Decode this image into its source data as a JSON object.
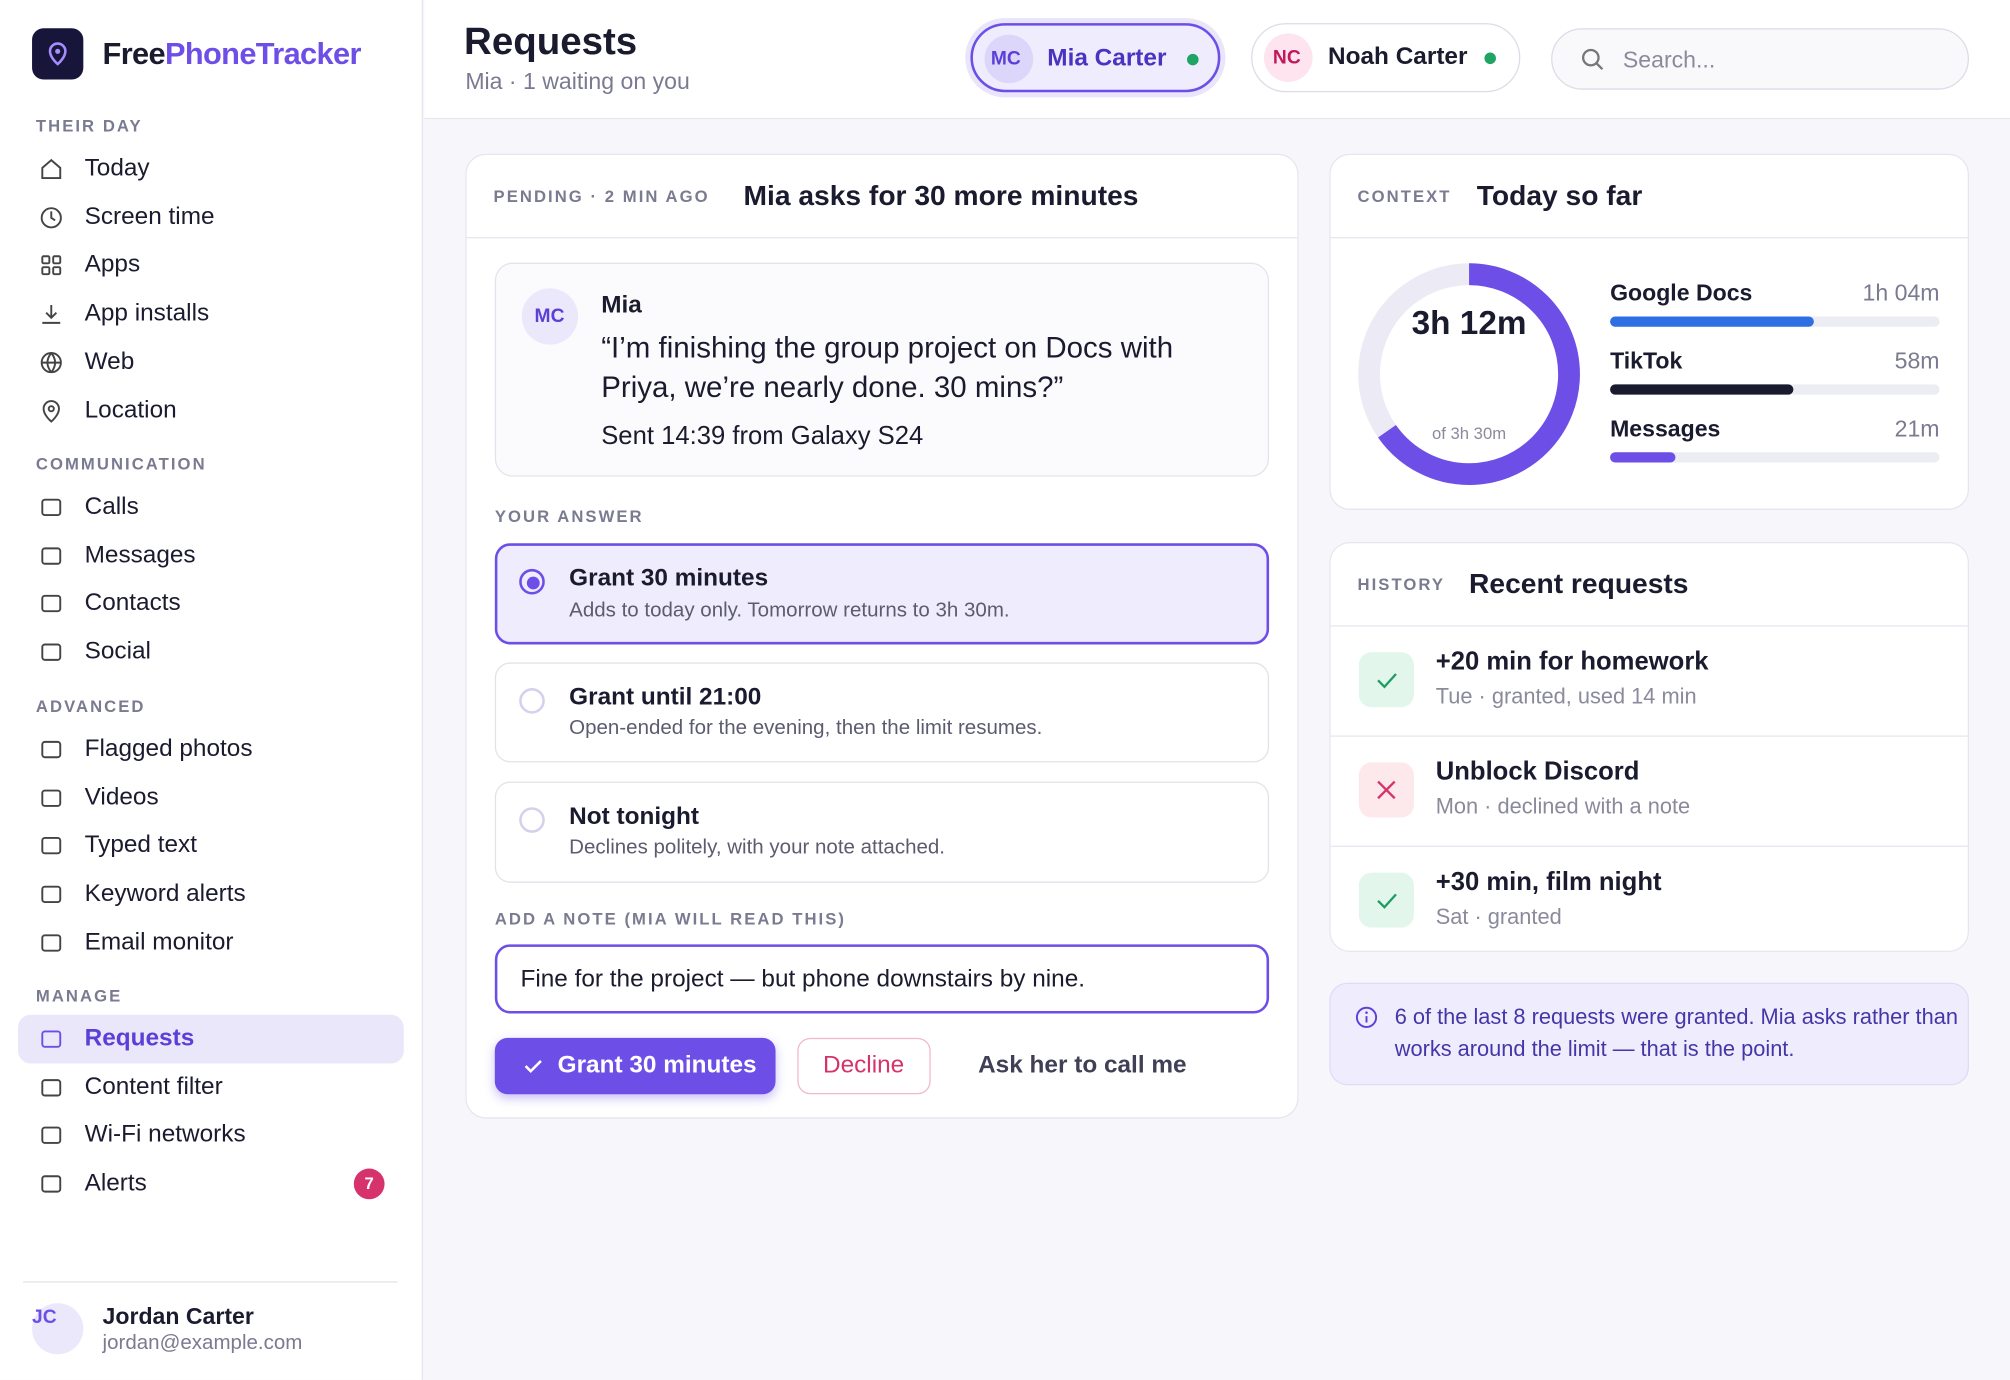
{
  "brand": {
    "part1": "Free",
    "part2": "PhoneTracker"
  },
  "header": {
    "title": "Requests",
    "subtitle": "Mia · 1 waiting on you",
    "profiles": [
      {
        "initials": "MC",
        "name": "Mia Carter"
      },
      {
        "initials": "NC",
        "name": "Noah Carter"
      }
    ],
    "search": "Search..."
  },
  "sidebar": {
    "sections": [
      {
        "title": "THEIR DAY",
        "items": [
          "Today",
          "Screen time",
          "Apps",
          "App installs",
          "Web",
          "Location"
        ]
      },
      {
        "title": "COMMUNICATION",
        "items": [
          "Calls",
          "Messages",
          "Contacts",
          "Social"
        ]
      },
      {
        "title": "ADVANCED",
        "items": [
          "Flagged photos",
          "Videos",
          "Typed text",
          "Keyword alerts",
          "Email monitor"
        ]
      },
      {
        "title": "MANAGE",
        "items": [
          "Requests",
          "Content filter",
          "Wi-Fi networks",
          "Alerts"
        ]
      }
    ],
    "alerts_badge": 7
  },
  "user": {
    "initials": "JC",
    "name": "Jordan Carter",
    "email": "jordan@example.com"
  },
  "request": {
    "status": "PENDING · 2 MIN AGO",
    "title": "Mia asks for 30 more minutes",
    "message": {
      "initials": "MC",
      "sender": "Mia",
      "quote": "“I’m finishing the group project on Docs with Priya, we’re nearly done. 30 mins?”",
      "sent": "Sent 14:39 from Galaxy S24"
    },
    "answer_label": "YOUR ANSWER",
    "options": [
      {
        "title": "Grant 30 minutes",
        "desc": "Adds to today only. Tomorrow returns to 3h 30m."
      },
      {
        "title": "Grant until 21:00",
        "desc": "Open-ended for the evening, then the limit resumes."
      },
      {
        "title": "Not tonight",
        "desc": "Declines politely, with your note attached."
      }
    ],
    "note_label": "ADD A NOTE (MIA WILL READ THIS)",
    "note": "Fine for the project — but phone downstairs by nine.",
    "actions": {
      "grant": "Grant 30 minutes",
      "decline": "Decline",
      "ask": "Ask her to call me"
    }
  },
  "context": {
    "label": "CONTEXT",
    "title": "Today so far",
    "total": "3h 12m",
    "limit": "of 3h 30m",
    "apps": [
      {
        "name": "Google Docs",
        "time": "1h 04m"
      },
      {
        "name": "TikTok",
        "time": "58m"
      },
      {
        "name": "Messages",
        "time": "21m"
      }
    ]
  },
  "history": {
    "label": "HISTORY",
    "title": "Recent requests",
    "items": [
      {
        "title": "+20 min for homework",
        "detail": "Tue · granted, used 14 min"
      },
      {
        "title": "Unblock Discord",
        "detail": "Mon · declined with a note"
      },
      {
        "title": "+30 min, film night",
        "detail": "Sat · granted"
      }
    ]
  },
  "insight": "6 of the last 8 requests were granted. Mia asks rather than works around the limit — that is the point."
}
